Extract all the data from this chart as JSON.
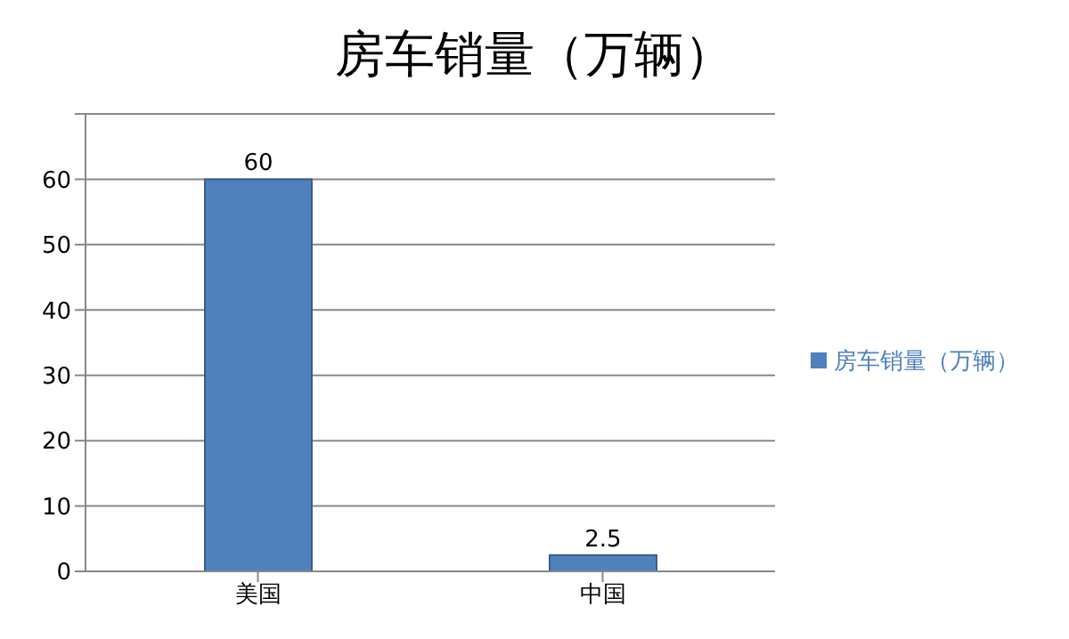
{
  "chart_data": {
    "type": "bar",
    "title": "房车销量（万辆）",
    "categories": [
      "美国",
      "中国"
    ],
    "series": [
      {
        "name": "房车销量（万辆）",
        "color": "#4f81bd",
        "values": [
          60,
          2.5
        ]
      }
    ],
    "ylim": [
      0,
      70
    ],
    "yticks": [
      0,
      10,
      20,
      30,
      40,
      50,
      60,
      {
        "value": 70,
        "label": null
      }
    ],
    "grid": "y",
    "legend": "right",
    "data_labels": true
  }
}
